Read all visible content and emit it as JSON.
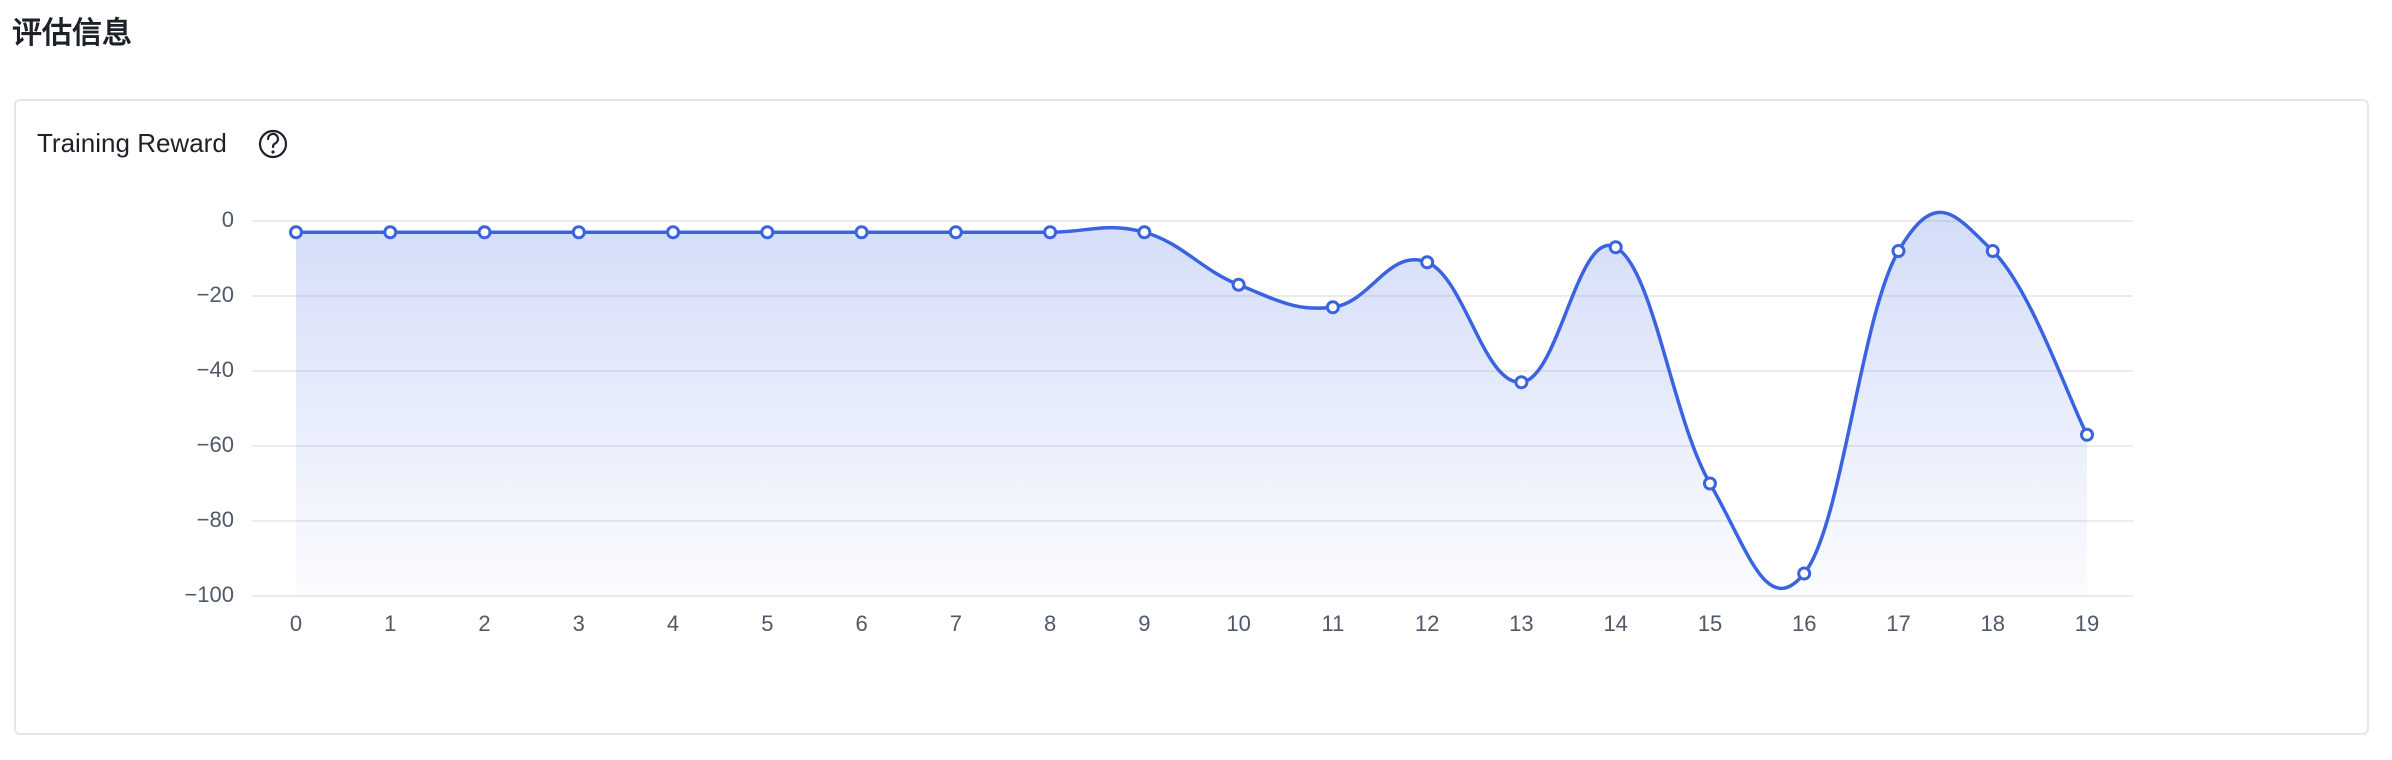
{
  "page": {
    "heading": "评估信息"
  },
  "chart_data": {
    "type": "line",
    "title": "Training Reward",
    "categories": [
      0,
      1,
      2,
      3,
      4,
      5,
      6,
      7,
      8,
      9,
      10,
      11,
      12,
      13,
      14,
      15,
      16,
      17,
      18,
      19
    ],
    "values": [
      -3,
      -3,
      -3,
      -3,
      -3,
      -3,
      -3,
      -3,
      -3,
      -3,
      -17,
      -23,
      -11,
      -43,
      -7,
      -70,
      -94,
      -8,
      -8,
      -57
    ],
    "color": "#3a63e0",
    "ylim": [
      -100,
      0
    ],
    "yticks": [
      0,
      {
        "value": -20,
        "label": "−20"
      },
      {
        "value": -40,
        "label": "−40"
      },
      {
        "value": -60,
        "label": "−60"
      },
      {
        "value": -80,
        "label": "−80"
      },
      {
        "value": -100,
        "label": "−100"
      }
    ],
    "grid": true,
    "smooth": true,
    "area": true
  }
}
